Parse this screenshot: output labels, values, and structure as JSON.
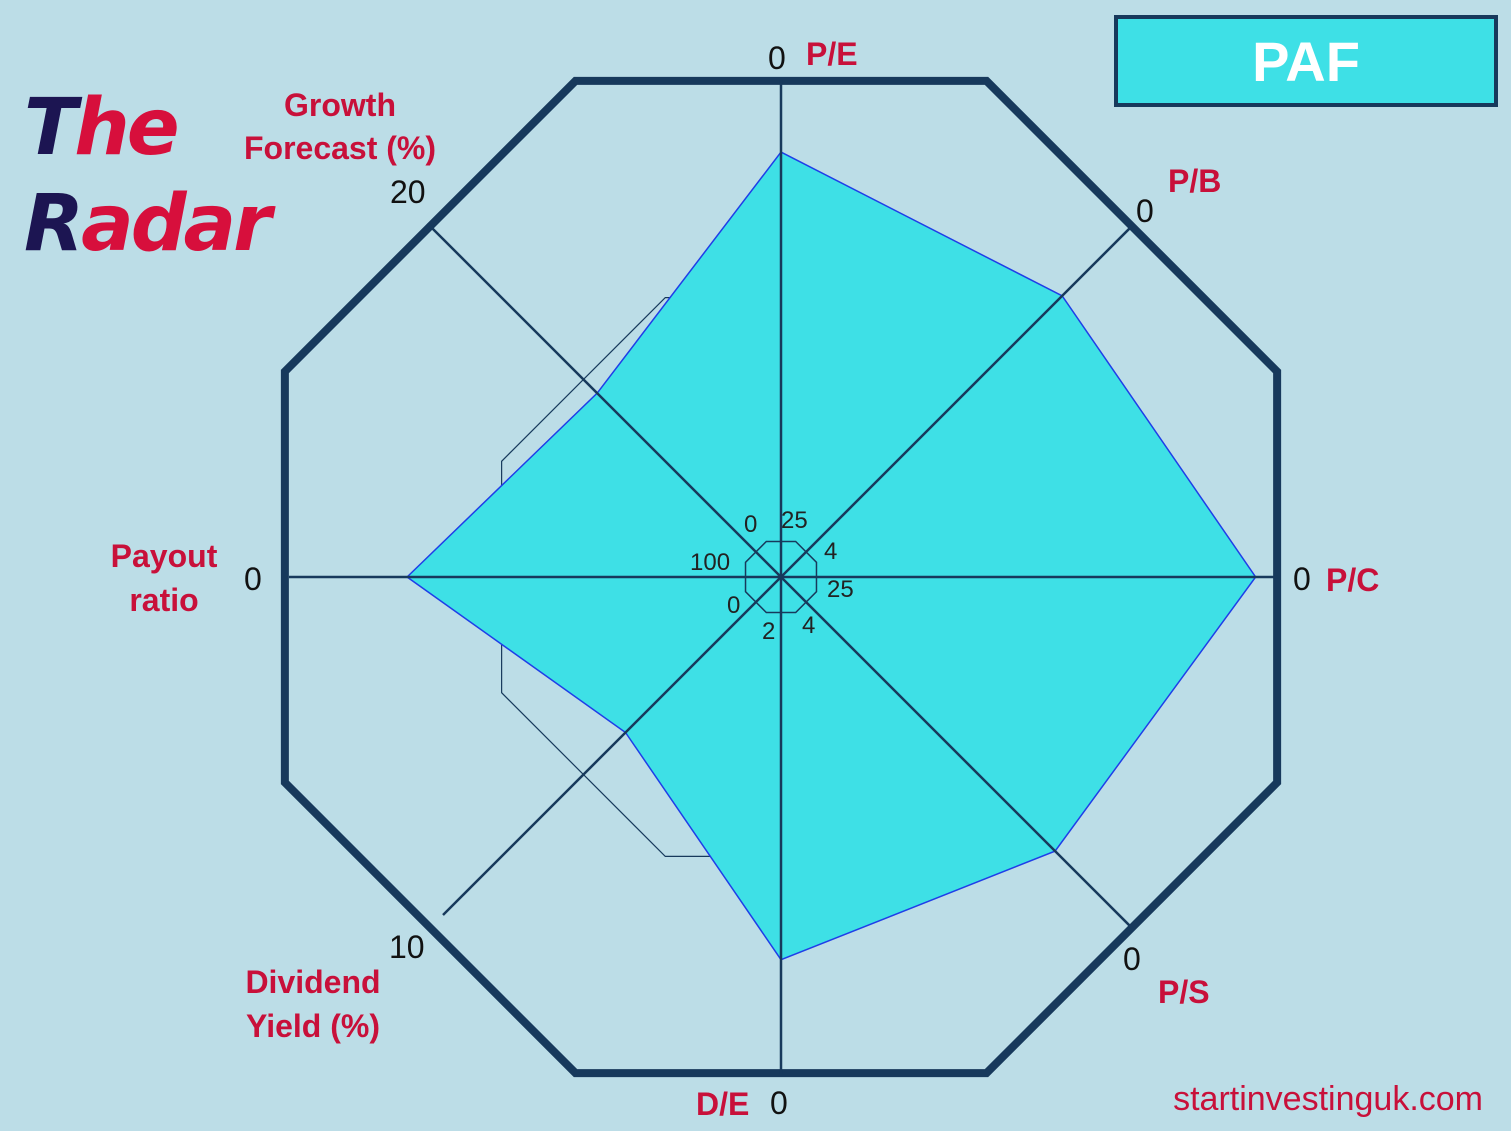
{
  "header": {
    "logo_line1_first": "T",
    "logo_line1_rest": "he",
    "logo_line2_first": "R",
    "logo_line2_rest": "adar",
    "ticker": "PAF",
    "ticker_bg": "#3ee0e6"
  },
  "footer": {
    "site": "startinvestinguk.com"
  },
  "colors": {
    "frame": "#17395c",
    "fill": "#3ee0e6",
    "fill_stroke": "#1f3ee8",
    "label": "#c8103a",
    "background": "#bcdde7"
  },
  "chart_data": {
    "type": "radar",
    "title": "",
    "axes": [
      {
        "name": "P/E",
        "outer_label": "0",
        "inner_label": "25",
        "value_fraction": 0.855
      },
      {
        "name": "P/B",
        "outer_label": "0",
        "inner_label": "4",
        "value_fraction": 0.8
      },
      {
        "name": "P/C",
        "outer_label": "0",
        "inner_label": "25",
        "value_fraction": 0.955
      },
      {
        "name": "P/S",
        "outer_label": "0",
        "inner_label": "4",
        "value_fraction": 0.78
      },
      {
        "name": "D/E",
        "outer_label": "0",
        "inner_label": "2",
        "value_fraction": 0.77
      },
      {
        "name": "Dividend Yield (%)",
        "outer_label": "10",
        "inner_label": "0",
        "value_fraction": 0.46
      },
      {
        "name": "Payout ratio",
        "outer_label": "0",
        "inner_label": "100",
        "value_fraction": 0.76
      },
      {
        "name": "Growth Forecast (%)",
        "outer_label": "20",
        "inner_label": "0",
        "value_fraction": 0.52
      }
    ],
    "reference_ring_fraction": 0.63,
    "inner_ring_fraction": 0.08,
    "grid": true,
    "legend": "none"
  }
}
